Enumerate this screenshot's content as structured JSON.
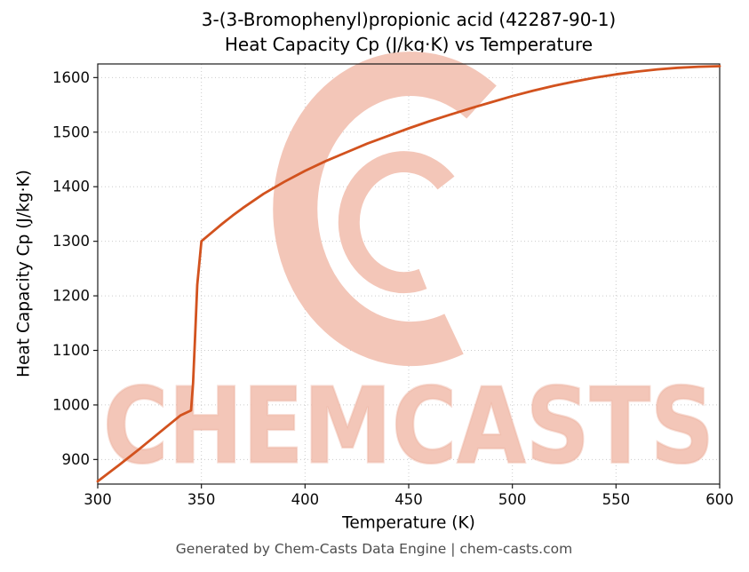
{
  "title": {
    "line1": "3-(3-Bromophenyl)propionic acid (42287-90-1)",
    "line2": "Heat Capacity Cp (J/kg·K) vs Temperature"
  },
  "watermark": {
    "text": "CHEMCASTS",
    "color": "#f3c6b8",
    "edge_color": "#e8a causes"
  },
  "footer": {
    "text": "Generated by Chem-Casts Data Engine | chem-casts.com"
  },
  "chart_data": {
    "type": "line",
    "title": "3-(3-Bromophenyl)propionic acid (42287-90-1) Heat Capacity Cp (J/kg·K) vs Temperature",
    "xlabel": "Temperature (K)",
    "ylabel": "Heat Capacity Cp (J/kg·K)",
    "xlim": [
      300,
      600
    ],
    "ylim": [
      855,
      1625
    ],
    "xticks": [
      300,
      350,
      400,
      450,
      500,
      550,
      600
    ],
    "yticks": [
      900,
      1000,
      1100,
      1200,
      1300,
      1400,
      1500,
      1600
    ],
    "grid": true,
    "legend": "none",
    "line_color": "#d2521e",
    "series": [
      {
        "name": "Heat Capacity Cp",
        "x": [
          300,
          310,
          320,
          330,
          340,
          345,
          346,
          347,
          348,
          350,
          355,
          360,
          365,
          370,
          375,
          380,
          385,
          390,
          395,
          400,
          410,
          420,
          430,
          440,
          450,
          460,
          470,
          480,
          490,
          500,
          510,
          520,
          530,
          540,
          550,
          560,
          570,
          580,
          590,
          600
        ],
        "y": [
          860,
          889,
          919,
          950,
          981,
          990,
          1040,
          1130,
          1220,
          1300,
          1316,
          1332,
          1347,
          1361,
          1374,
          1387,
          1398,
          1409,
          1419,
          1429,
          1447,
          1463,
          1479,
          1493,
          1507,
          1520,
          1532,
          1544,
          1555,
          1566,
          1576,
          1585,
          1593,
          1600,
          1606,
          1611,
          1615,
          1618,
          1620,
          1621
        ]
      }
    ]
  }
}
